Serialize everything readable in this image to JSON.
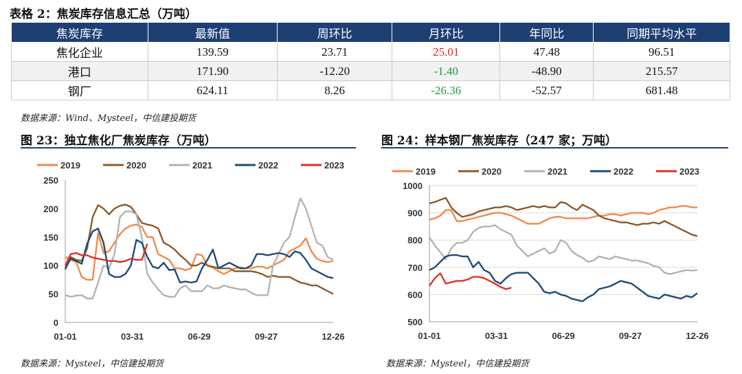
{
  "table": {
    "caption": "表格 2：焦炭库存信息汇总（万吨）",
    "headers": [
      "焦炭库存",
      "最新值",
      "周环比",
      "月环比",
      "年同比",
      "同期平均水平"
    ],
    "rows": [
      {
        "name": "焦化企业",
        "latest": "139.59",
        "wow": "23.71",
        "mom": "25.01",
        "yoy": "47.48",
        "avg": "96.51"
      },
      {
        "name": "港口",
        "latest": "171.90",
        "wow": "-12.20",
        "mom": "-1.40",
        "yoy": "-48.90",
        "avg": "215.57"
      },
      {
        "name": "钢厂",
        "latest": "624.11",
        "wow": "8.26",
        "mom": "-26.36",
        "yoy": "-52.57",
        "avg": "681.48"
      }
    ],
    "source": "数据来源：Wind、Mysteel，中信建投期货"
  },
  "colors": {
    "header_bg": "#1e3f73",
    "s2019": "#f08a4b",
    "s2020": "#8c5a2b",
    "s2021": "#b3b3b3",
    "s2022": "#1e4b7a",
    "s2023": "#d9312b",
    "up": "#e0251b",
    "down": "#1d9a3c"
  },
  "chart_data": [
    {
      "type": "line",
      "title": "图 23：独立焦化厂焦炭库存（万吨）",
      "source": "数据来源：Mysteel，中信建投期货",
      "ylim": [
        0,
        250
      ],
      "yticks": [
        "0",
        "50",
        "100",
        "150",
        "200",
        "250"
      ],
      "xticks": [
        "01-01",
        "03-31",
        "06-29",
        "09-27",
        "12-26"
      ],
      "grid": false,
      "legend_position": "top",
      "series": [
        {
          "name": "2019",
          "values": [
            115,
            110,
            106,
            80,
            75,
            75,
            157,
            122,
            125,
            140,
            155,
            165,
            170,
            172,
            168,
            150,
            150,
            120,
            115,
            110,
            95,
            95,
            92,
            95,
            120,
            118,
            100,
            96,
            90,
            85,
            90,
            95,
            97,
            95,
            95,
            98,
            98,
            95,
            100,
            105,
            110,
            125,
            130,
            135,
            148,
            125,
            112,
            108,
            106,
            108
          ]
        },
        {
          "name": "2020",
          "values": [
            93,
            115,
            110,
            108,
            130,
            185,
            206,
            200,
            190,
            200,
            205,
            207,
            203,
            190,
            175,
            172,
            170,
            165,
            140,
            135,
            128,
            118,
            110,
            100,
            100,
            105,
            100,
            98,
            95,
            95,
            95,
            90,
            90,
            90,
            90,
            88,
            85,
            80,
            82,
            80,
            80,
            80,
            75,
            70,
            68,
            65,
            65,
            60,
            55,
            50
          ]
        },
        {
          "name": "2021",
          "values": [
            48,
            45,
            47,
            48,
            42,
            42,
            70,
            100,
            95,
            120,
            185,
            195,
            195,
            190,
            150,
            85,
            70,
            58,
            48,
            45,
            45,
            60,
            65,
            55,
            55,
            55,
            65,
            60,
            60,
            65,
            62,
            60,
            58,
            58,
            52,
            48,
            48,
            48,
            100,
            120,
            140,
            150,
            185,
            218,
            200,
            170,
            140,
            135,
            115,
            110
          ]
        },
        {
          "name": "2022",
          "values": [
            95,
            112,
            108,
            103,
            138,
            160,
            165,
            140,
            85,
            80,
            80,
            85,
            100,
            145,
            140,
            115,
            98,
            95,
            105,
            92,
            93,
            70,
            72,
            70,
            72,
            95,
            110,
            128,
            95,
            100,
            105,
            100,
            95,
            95,
            100,
            120,
            120,
            118,
            120,
            122,
            120,
            115,
            125,
            122,
            110,
            95,
            90,
            85,
            80,
            78
          ]
        },
        {
          "name": "2023",
          "values": [
            100,
            120,
            122,
            118,
            118,
            114,
            112,
            110,
            108,
            108,
            106,
            108,
            112,
            110,
            110,
            138
          ]
        }
      ]
    },
    {
      "type": "line",
      "title": "图 24：样本钢厂焦炭库存（247 家；万吨）",
      "source": "数据来源：Mysteel，中信建投期货",
      "ylim": [
        500,
        1000
      ],
      "yticks": [
        "500",
        "600",
        "700",
        "800",
        "900",
        "1000"
      ],
      "xticks": [
        "01-01",
        "03-31",
        "06-29",
        "09-27",
        "12-26"
      ],
      "grid": true,
      "legend_position": "top",
      "series": [
        {
          "name": "2019",
          "values": [
            875,
            880,
            890,
            910,
            910,
            870,
            870,
            875,
            880,
            885,
            890,
            895,
            900,
            900,
            895,
            890,
            880,
            870,
            860,
            860,
            860,
            870,
            880,
            885,
            885,
            880,
            880,
            880,
            880,
            880,
            885,
            890,
            890,
            895,
            895,
            890,
            895,
            900,
            900,
            900,
            895,
            900,
            910,
            915,
            920,
            920,
            925,
            925,
            920,
            920
          ]
        },
        {
          "name": "2020",
          "values": [
            935,
            940,
            948,
            955,
            920,
            900,
            885,
            890,
            895,
            905,
            910,
            915,
            920,
            920,
            925,
            920,
            910,
            915,
            920,
            925,
            920,
            925,
            920,
            920,
            940,
            935,
            920,
            910,
            930,
            920,
            910,
            890,
            880,
            875,
            870,
            865,
            865,
            860,
            855,
            860,
            860,
            865,
            860,
            870,
            860,
            850,
            840,
            830,
            820,
            815
          ]
        },
        {
          "name": "2021",
          "values": [
            810,
            780,
            755,
            730,
            770,
            790,
            790,
            800,
            830,
            845,
            850,
            850,
            855,
            840,
            830,
            820,
            780,
            760,
            740,
            750,
            760,
            770,
            750,
            760,
            800,
            790,
            760,
            745,
            735,
            720,
            725,
            740,
            735,
            730,
            740,
            735,
            730,
            725,
            725,
            720,
            715,
            705,
            700,
            680,
            675,
            680,
            685,
            690,
            688,
            690
          ]
        },
        {
          "name": "2022",
          "values": [
            690,
            700,
            720,
            740,
            745,
            745,
            740,
            740,
            700,
            720,
            690,
            680,
            650,
            640,
            660,
            675,
            680,
            680,
            680,
            660,
            640,
            610,
            605,
            610,
            600,
            595,
            585,
            580,
            575,
            590,
            600,
            620,
            625,
            630,
            640,
            650,
            645,
            640,
            625,
            610,
            595,
            590,
            585,
            600,
            595,
            590,
            585,
            595,
            590,
            605
          ]
        },
        {
          "name": "2023",
          "values": [
            632,
            660,
            678,
            640,
            645,
            650,
            650,
            655,
            665,
            665,
            660,
            650,
            640,
            628,
            620,
            625
          ]
        }
      ]
    }
  ]
}
